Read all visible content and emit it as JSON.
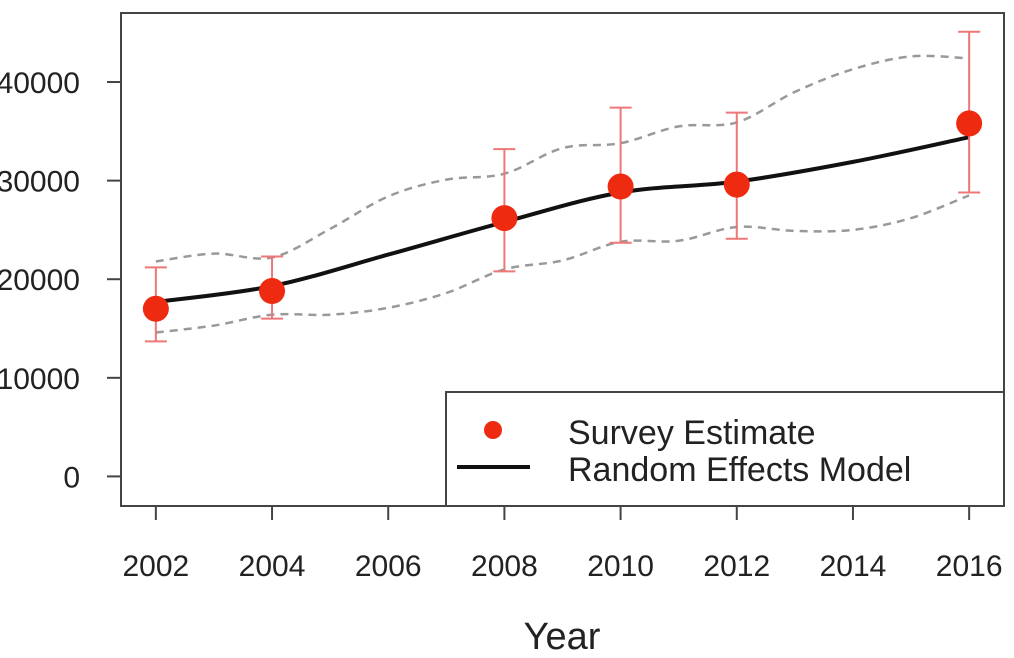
{
  "chart_data": {
    "type": "line",
    "title": "",
    "xlabel": "Year",
    "ylabel": "",
    "xlim": [
      2001.4,
      2016.6
    ],
    "ylim": [
      -3000,
      47000
    ],
    "x_ticks": [
      2002,
      2004,
      2006,
      2008,
      2010,
      2012,
      2014,
      2016
    ],
    "y_ticks": [
      0,
      10000,
      20000,
      30000,
      40000
    ],
    "y_tick_labels": [
      "0",
      "10000",
      "20000",
      "30000",
      "40000"
    ],
    "grid": false,
    "legend": {
      "position": "bottom-right",
      "entries": [
        "Survey Estimate",
        "Random Effects Model"
      ]
    },
    "series": [
      {
        "name": "Survey Estimate",
        "kind": "points_with_error_bars",
        "color": "#ee2a10",
        "errorbar_color": "#ee7777",
        "x": [
          2002,
          2004,
          2008,
          2010,
          2012,
          2016
        ],
        "y": [
          17000,
          18800,
          26200,
          29400,
          29600,
          35800
        ],
        "lower": [
          13700,
          16000,
          20800,
          23700,
          24100,
          28800
        ],
        "upper": [
          21200,
          22300,
          33200,
          37400,
          36900,
          45100
        ]
      },
      {
        "name": "Random Effects Model",
        "kind": "line",
        "color": "#111111",
        "x": [
          2002,
          2004,
          2006,
          2008,
          2010,
          2012,
          2014,
          2016
        ],
        "y": [
          17700,
          19300,
          22500,
          25800,
          28800,
          29900,
          31900,
          34400
        ]
      },
      {
        "name": "",
        "kind": "dashed_band",
        "color": "#999999",
        "x": [
          2002,
          2003,
          2004,
          2005,
          2006,
          2007,
          2008,
          2009,
          2010,
          2011,
          2012,
          2013,
          2014,
          2015,
          2016
        ],
        "lower": [
          14600,
          15300,
          16400,
          16400,
          17100,
          18600,
          21000,
          21900,
          23800,
          23900,
          25300,
          24900,
          25000,
          26200,
          28500
        ],
        "upper": [
          21800,
          22600,
          22200,
          25100,
          28400,
          30100,
          30700,
          33300,
          33800,
          35500,
          35900,
          39000,
          41300,
          42600,
          42400
        ]
      }
    ]
  }
}
